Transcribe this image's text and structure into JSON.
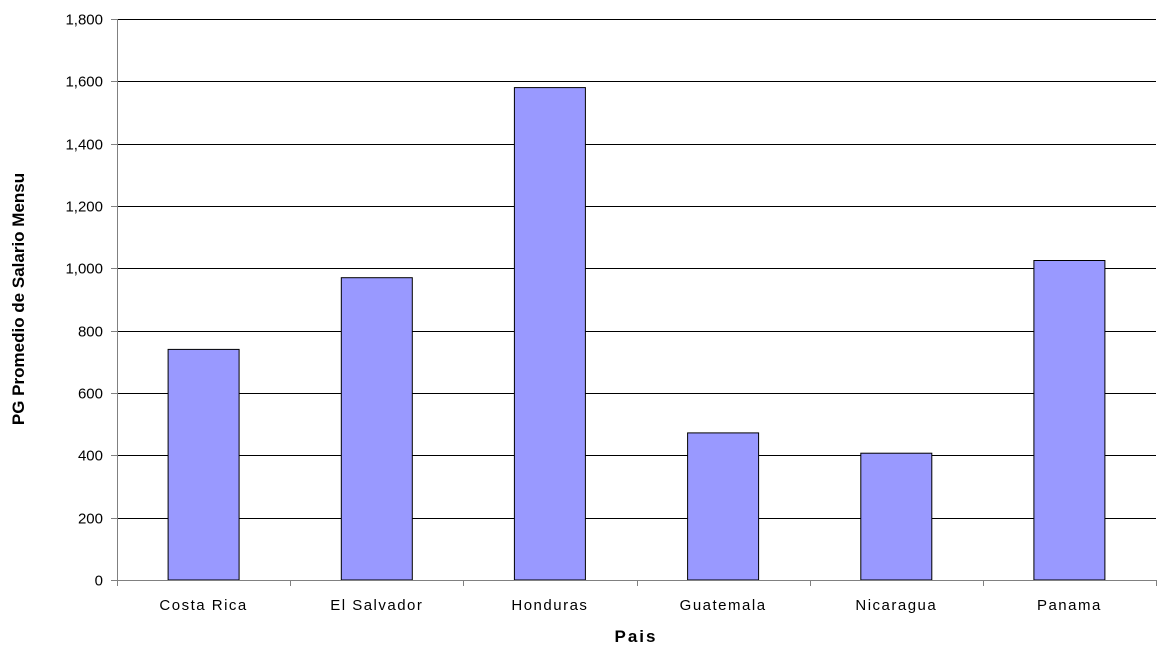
{
  "chart_data": {
    "type": "bar",
    "title": "",
    "xlabel": "Pais",
    "ylabel": "PG Promedio de Salario Mensu",
    "categories": [
      "Costa Rica",
      "El Salvador",
      "Honduras",
      "Guatemala",
      "Nicaragua",
      "Panama"
    ],
    "values": [
      740,
      970,
      1580,
      472,
      407,
      1025
    ],
    "ylim": [
      0,
      1800
    ],
    "yticks": [
      0,
      200,
      400,
      600,
      800,
      1000,
      1200,
      1400,
      1600,
      1800
    ],
    "ytick_labels": [
      "0",
      "200",
      "400",
      "600",
      "800",
      "1,000",
      "1,200",
      "1,400",
      "1,600",
      "1,800"
    ],
    "grid": true,
    "legend": "none",
    "colors": {
      "bar_fill": "#9999ff",
      "bar_stroke": "#000000",
      "grid": "#000000",
      "axis": "#808080"
    }
  }
}
